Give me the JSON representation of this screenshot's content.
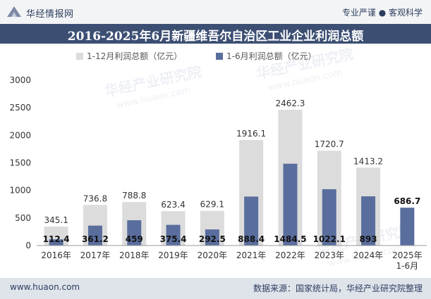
{
  "header": {
    "brand": "华经情报网",
    "tagline": "专业严谨 ● 客观科学"
  },
  "title": "2016-2025年6月新疆维吾尔自治区工业企业利润总额",
  "footer": {
    "url": "www.huaon.com",
    "source": "数据来源：国家统计局，华经产业研究院整理"
  },
  "watermarks": [
    "华经产业研究院",
    "www.huaon.com"
  ],
  "colors": {
    "full_year": "#dcdcdc",
    "first_half": "#5a6e9e",
    "title_bar": "#3c4f73",
    "footer_bar": "#dfe3ea"
  },
  "chart_data": {
    "type": "bar",
    "categories": [
      "2016年",
      "2017年",
      "2018年",
      "2019年",
      "2020年",
      "2021年",
      "2022年",
      "2023年",
      "2024年",
      "2025年\n1-6月"
    ],
    "series": [
      {
        "name": "1-12月利润总额（亿元）",
        "values": [
          345.1,
          736.8,
          788.8,
          623.4,
          629.1,
          1916.1,
          2462.3,
          1720.7,
          1413.2,
          null
        ],
        "labels": [
          "345.1",
          "736.8",
          "788.8",
          "623.4",
          "629.1",
          "1916.1",
          "2462.3",
          "1720.7",
          "1413.2",
          ""
        ]
      },
      {
        "name": "1-6月利润总额（亿元）",
        "values": [
          112.4,
          361.2,
          459,
          375.4,
          292.5,
          888.4,
          1484.5,
          1022.1,
          893,
          686.7
        ],
        "labels": [
          "112.4",
          "361.2",
          "459",
          "375.4",
          "292.5",
          "888.4",
          "1484.5",
          "1022.1",
          "893",
          "686.7"
        ]
      }
    ],
    "ylim": [
      0,
      3000
    ],
    "yticks": [
      0,
      500,
      1000,
      1500,
      2000,
      2500,
      3000
    ],
    "legend": "top-center",
    "grid": false
  }
}
